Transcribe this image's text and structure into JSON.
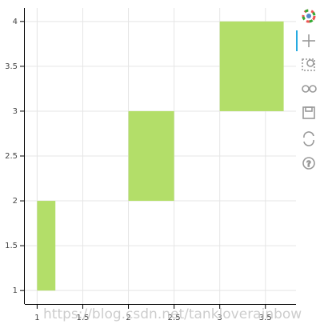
{
  "chart_data": {
    "type": "quad",
    "series": [
      {
        "color": "#b3de69",
        "left": [
          1,
          2,
          3
        ],
        "right": [
          1.2,
          2.5,
          3.7
        ],
        "bottom": [
          1,
          2,
          3
        ],
        "top": [
          2,
          3,
          4
        ]
      }
    ],
    "xlim": [
      0.865,
      3.835
    ],
    "ylim": [
      0.85,
      4.15
    ],
    "xticks": [
      1,
      1.5,
      2,
      2.5,
      3,
      3.5
    ],
    "yticks": [
      1,
      1.5,
      2,
      2.5,
      3,
      3.5,
      4
    ],
    "grid": true
  },
  "watermark": "https://blog.csdn.net/tankloverainbow"
}
